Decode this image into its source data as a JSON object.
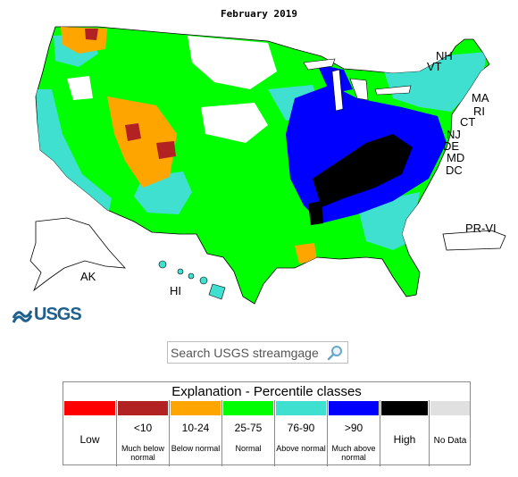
{
  "map": {
    "title": "February 2019",
    "state_labels": [
      "NH",
      "VT",
      "MA",
      "RI",
      "CT",
      "NJ",
      "DE",
      "MD",
      "DC",
      "PR-VI",
      "AK",
      "HI"
    ],
    "colors": {
      "low": "#ff0000",
      "lt10": "#b22222",
      "p10_24": "#ffa500",
      "p25_75": "#00ff00",
      "p76_90": "#40e0d0",
      "gt90": "#0000ff",
      "high": "#000000",
      "nodata": "#e0e0e0"
    }
  },
  "logo": {
    "text": "USGS"
  },
  "search": {
    "placeholder": "Search USGS streamgage"
  },
  "legend": {
    "title": "Explanation - Percentile classes",
    "classes": [
      {
        "label": "Low",
        "sub": "",
        "color": "#ff0000"
      },
      {
        "label": "<10",
        "sub": "Much below normal",
        "color": "#b22222"
      },
      {
        "label": "10-24",
        "sub": "Below normal",
        "color": "#ffa500"
      },
      {
        "label": "25-75",
        "sub": "Normal",
        "color": "#00ff00"
      },
      {
        "label": "76-90",
        "sub": "Above normal",
        "color": "#40e0d0"
      },
      {
        "label": ">90",
        "sub": "Much above normal",
        "color": "#0000ff"
      },
      {
        "label": "High",
        "sub": "",
        "color": "#000000"
      },
      {
        "label": "No Data",
        "sub": "",
        "color": "#e0e0e0"
      }
    ]
  }
}
